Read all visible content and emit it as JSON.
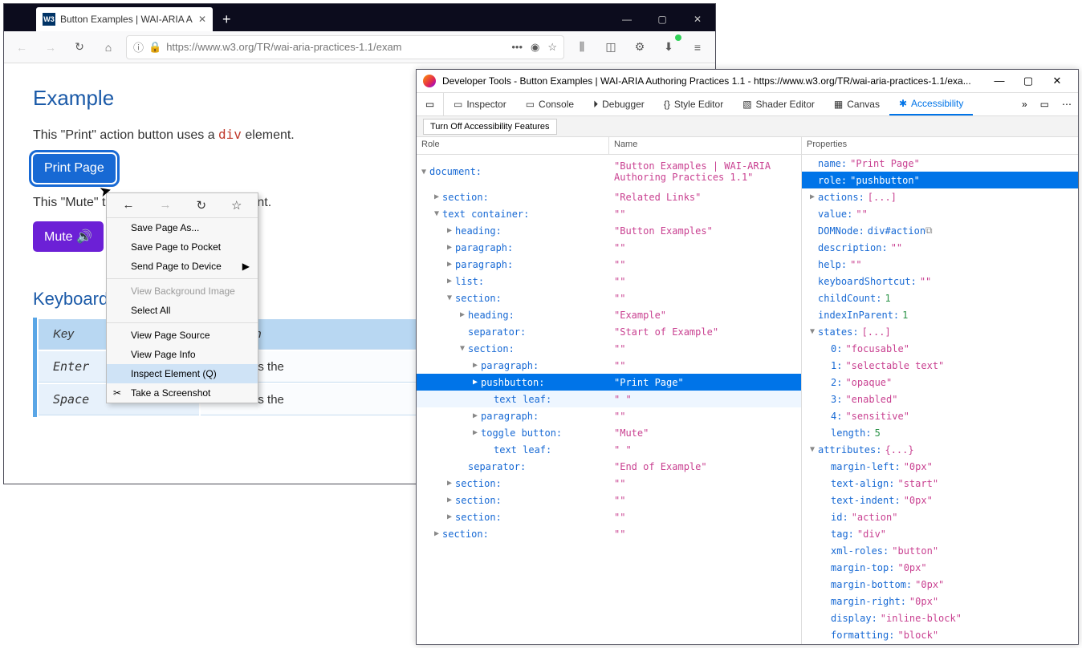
{
  "browser": {
    "tab_title": "Button Examples | WAI-ARIA A",
    "favicon": "W3",
    "url": "https://www.w3.org/TR/wai-aria-practices-1.1/exam"
  },
  "page": {
    "heading": "Example",
    "p1_pre": "This \"Print\" action button uses a ",
    "p1_code": "div",
    "p1_post": " element.",
    "print_btn": "Print Page",
    "p2_pre": "This \"Mute\" t",
    "p2_post": "ent.",
    "mute_btn": "Mute",
    "kbd_heading": "Keyboard",
    "th_key": "Key",
    "th_func": "Function",
    "rows": [
      {
        "k": "Enter",
        "f": "Activates the"
      },
      {
        "k": "Space",
        "f": "Activates the"
      }
    ]
  },
  "ctx": {
    "items": [
      {
        "label": "Save Page As...",
        "u": "P"
      },
      {
        "label": "Save Page to Pocket"
      },
      {
        "label": "Send Page to Device",
        "arrow": true,
        "u": "n"
      },
      {
        "sep": true
      },
      {
        "label": "View Background Image",
        "disabled": true
      },
      {
        "label": "Select All",
        "u": "A"
      },
      {
        "sep": true
      },
      {
        "label": "View Page Source",
        "u": "V"
      },
      {
        "label": "View Page Info",
        "u": "I"
      },
      {
        "label": "Inspect Element (Q)",
        "hl": true
      },
      {
        "label": "Take a Screenshot",
        "icon": "✂"
      }
    ]
  },
  "devtools": {
    "title": "Developer Tools - Button Examples | WAI-ARIA Authoring Practices 1.1 - https://www.w3.org/TR/wai-aria-practices-1.1/exa...",
    "tabs": [
      "Inspector",
      "Console",
      "Debugger",
      "Style Editor",
      "Shader Editor",
      "Canvas",
      "Accessibility"
    ],
    "active_tab": 6,
    "sub_btn": "Turn Off Accessibility Features",
    "tree_head_role": "Role",
    "tree_head_name": "Name",
    "prop_head": "Properties",
    "tree": [
      {
        "d": 0,
        "tw": "▼",
        "role": "document:",
        "name": "\"Button Examples | WAI-ARIA Authoring Practices 1.1\"",
        "wrap": true
      },
      {
        "d": 1,
        "tw": "▶",
        "role": "section:",
        "name": "\"Related Links\""
      },
      {
        "d": 1,
        "tw": "▼",
        "role": "text container:",
        "name": "\"\""
      },
      {
        "d": 2,
        "tw": "▶",
        "role": "heading:",
        "name": "\"Button Examples\""
      },
      {
        "d": 2,
        "tw": "▶",
        "role": "paragraph:",
        "name": "\"\""
      },
      {
        "d": 2,
        "tw": "▶",
        "role": "paragraph:",
        "name": "\"\""
      },
      {
        "d": 2,
        "tw": "▶",
        "role": "list:",
        "name": "\"\""
      },
      {
        "d": 2,
        "tw": "▼",
        "role": "section:",
        "name": "\"\""
      },
      {
        "d": 3,
        "tw": "▶",
        "role": "heading:",
        "name": "\"Example\""
      },
      {
        "d": 3,
        "tw": "",
        "role": "separator:",
        "name": "\"Start of Example\""
      },
      {
        "d": 3,
        "tw": "▼",
        "role": "section:",
        "name": "\"\""
      },
      {
        "d": 4,
        "tw": "▶",
        "role": "paragraph:",
        "name": "\"\""
      },
      {
        "d": 4,
        "tw": "▶",
        "role": "pushbutton:",
        "name": "\"Print Page\"",
        "sel": true
      },
      {
        "d": 5,
        "tw": "",
        "role": "text leaf:",
        "name": "\" \"",
        "sub": true
      },
      {
        "d": 4,
        "tw": "▶",
        "role": "paragraph:",
        "name": "\"\""
      },
      {
        "d": 4,
        "tw": "▶",
        "role": "toggle button:",
        "name": "\"Mute\""
      },
      {
        "d": 5,
        "tw": "",
        "role": "text leaf:",
        "name": "\" \""
      },
      {
        "d": 3,
        "tw": "",
        "role": "separator:",
        "name": "\"End of Example\""
      },
      {
        "d": 2,
        "tw": "▶",
        "role": "section:",
        "name": "\"\""
      },
      {
        "d": 2,
        "tw": "▶",
        "role": "section:",
        "name": "\"\""
      },
      {
        "d": 2,
        "tw": "▶",
        "role": "section:",
        "name": "\"\""
      },
      {
        "d": 1,
        "tw": "▶",
        "role": "section:",
        "name": "\"\""
      }
    ],
    "properties": [
      {
        "d": 0,
        "k": "name:",
        "v": "\"Print Page\""
      },
      {
        "d": 0,
        "k": "role:",
        "v": "\"pushbutton\"",
        "sel": true
      },
      {
        "d": 0,
        "tw": "▶",
        "k": "actions:",
        "v": "[...]"
      },
      {
        "d": 0,
        "k": "value:",
        "v": "\"\""
      },
      {
        "d": 0,
        "k": "DOMNode:",
        "v": "div#action",
        "dom": true
      },
      {
        "d": 0,
        "k": "description:",
        "v": "\"\""
      },
      {
        "d": 0,
        "k": "help:",
        "v": "\"\""
      },
      {
        "d": 0,
        "k": "keyboardShortcut:",
        "v": "\"\""
      },
      {
        "d": 0,
        "k": "childCount:",
        "vn": "1"
      },
      {
        "d": 0,
        "k": "indexInParent:",
        "vn": "1"
      },
      {
        "d": 0,
        "tw": "▼",
        "k": "states:",
        "v": "[...]"
      },
      {
        "d": 1,
        "k": "0:",
        "v": "\"focusable\""
      },
      {
        "d": 1,
        "k": "1:",
        "v": "\"selectable text\""
      },
      {
        "d": 1,
        "k": "2:",
        "v": "\"opaque\""
      },
      {
        "d": 1,
        "k": "3:",
        "v": "\"enabled\""
      },
      {
        "d": 1,
        "k": "4:",
        "v": "\"sensitive\""
      },
      {
        "d": 1,
        "k": "length:",
        "vn": "5"
      },
      {
        "d": 0,
        "tw": "▼",
        "k": "attributes:",
        "v": "{...}"
      },
      {
        "d": 1,
        "k": "margin-left:",
        "v": "\"0px\""
      },
      {
        "d": 1,
        "k": "text-align:",
        "v": "\"start\""
      },
      {
        "d": 1,
        "k": "text-indent:",
        "v": "\"0px\""
      },
      {
        "d": 1,
        "k": "id:",
        "v": "\"action\""
      },
      {
        "d": 1,
        "k": "tag:",
        "v": "\"div\""
      },
      {
        "d": 1,
        "k": "xml-roles:",
        "v": "\"button\""
      },
      {
        "d": 1,
        "k": "margin-top:",
        "v": "\"0px\""
      },
      {
        "d": 1,
        "k": "margin-bottom:",
        "v": "\"0px\""
      },
      {
        "d": 1,
        "k": "margin-right:",
        "v": "\"0px\""
      },
      {
        "d": 1,
        "k": "display:",
        "v": "\"inline-block\""
      },
      {
        "d": 1,
        "k": "formatting:",
        "v": "\"block\""
      }
    ]
  }
}
